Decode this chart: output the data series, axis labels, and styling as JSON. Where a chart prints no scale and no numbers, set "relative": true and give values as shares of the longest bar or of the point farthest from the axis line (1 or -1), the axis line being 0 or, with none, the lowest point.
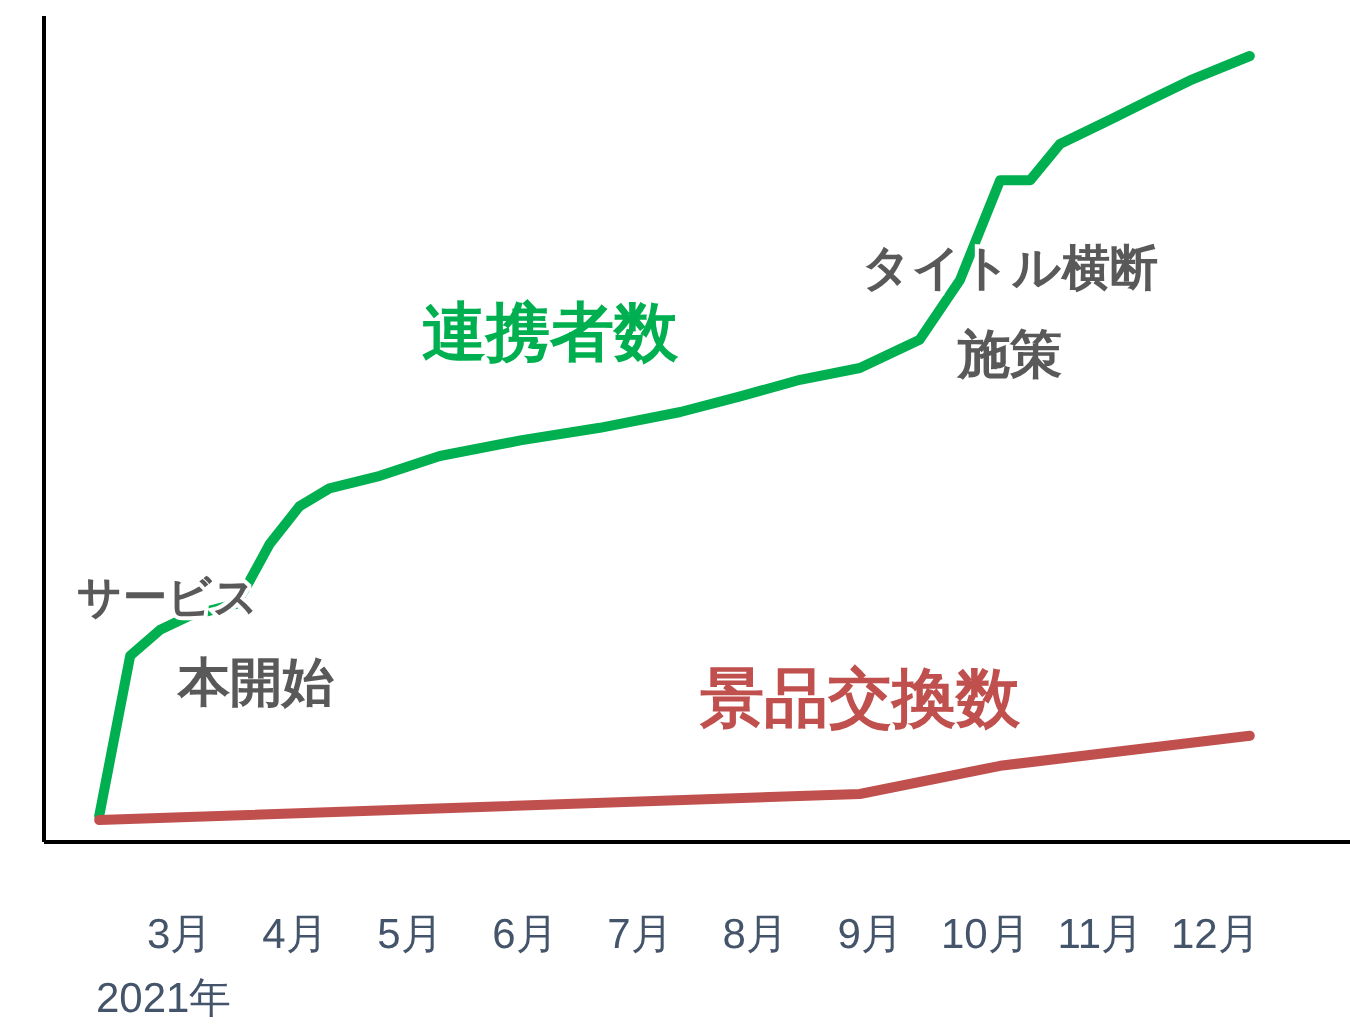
{
  "chart_data": {
    "type": "line",
    "relative": true,
    "xlabel": "2021年",
    "xlim": [
      1.82,
      13.17
    ],
    "xticks": [
      {
        "value": 3,
        "label": "3月"
      },
      {
        "value": 4,
        "label": "4月"
      },
      {
        "value": 5,
        "label": "5月"
      },
      {
        "value": 6,
        "label": "6月"
      },
      {
        "value": 7,
        "label": "7月"
      },
      {
        "value": 8,
        "label": "8月"
      },
      {
        "value": 9,
        "label": "9月"
      },
      {
        "value": 10,
        "label": "10月"
      },
      {
        "value": 11,
        "label": "11月"
      },
      {
        "value": 12,
        "label": "12月"
      }
    ],
    "series": [
      {
        "name": "連携者数",
        "color": "#00b050",
        "x": [
          2.3,
          2.57,
          2.83,
          3.09,
          3.49,
          3.61,
          3.78,
          4.04,
          4.3,
          4.74,
          5.26,
          5.96,
          6.65,
          7.35,
          7.87,
          8.39,
          8.91,
          9.43,
          9.78,
          10.13,
          10.39,
          10.65,
          11.09,
          11.43,
          11.78,
          12.3
        ],
        "values": [
          0.033,
          0.237,
          0.27,
          0.288,
          0.303,
          0.333,
          0.379,
          0.427,
          0.45,
          0.466,
          0.491,
          0.511,
          0.527,
          0.547,
          0.567,
          0.588,
          0.603,
          0.639,
          0.715,
          0.842,
          0.842,
          0.888,
          0.919,
          0.944,
          0.969,
          1.0
        ]
      },
      {
        "name": "景品交換数",
        "color": "#c0504d",
        "x": [
          2.3,
          8.91,
          10.13,
          12.3
        ],
        "values": [
          0.028,
          0.061,
          0.097,
          0.135
        ]
      }
    ],
    "annotations": [
      "サービス",
      "本開始",
      "タイトル横断",
      "施策"
    ],
    "grid": false,
    "legend": false,
    "marker": "none",
    "line_style": "solid"
  }
}
